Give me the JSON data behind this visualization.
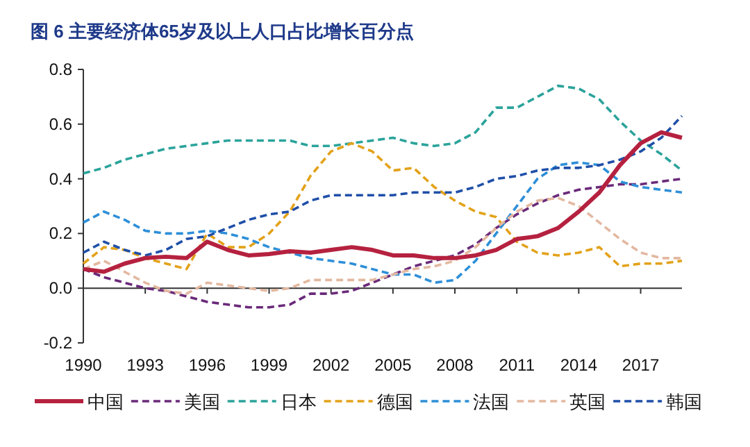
{
  "chart_data": {
    "type": "line",
    "title": "图 6  主要经济体65岁及以上人口占比增长百分点",
    "x": [
      1990,
      1991,
      1992,
      1993,
      1994,
      1995,
      1996,
      1997,
      1998,
      1999,
      2000,
      2001,
      2002,
      2003,
      2004,
      2005,
      2006,
      2007,
      2008,
      2009,
      2010,
      2011,
      2012,
      2013,
      2014,
      2015,
      2016,
      2017,
      2018,
      2019
    ],
    "xlim": [
      1990,
      2019
    ],
    "xticks": [
      1990,
      1993,
      1996,
      1999,
      2002,
      2005,
      2008,
      2011,
      2014,
      2017
    ],
    "ylim": [
      -0.2,
      0.8
    ],
    "yticks": [
      {
        "value": -0.2,
        "label": "-0.2"
      },
      {
        "value": 0,
        "label": "0.0"
      },
      {
        "value": 0.2,
        "label": "0.2"
      },
      {
        "value": 0.4,
        "label": "0.4"
      },
      {
        "value": 0.6,
        "label": "0.6"
      },
      {
        "value": 0.8,
        "label": "0.8"
      }
    ],
    "legend": "bottom",
    "series": [
      {
        "name": "中国",
        "color": "#b5213f",
        "line_style": "solid",
        "values": [
          0.07,
          0.06,
          0.09,
          0.11,
          0.115,
          0.11,
          0.17,
          0.14,
          0.12,
          0.125,
          0.135,
          0.13,
          0.14,
          0.15,
          0.14,
          0.12,
          0.12,
          0.11,
          0.11,
          0.12,
          0.14,
          0.18,
          0.19,
          0.22,
          0.28,
          0.35,
          0.45,
          0.53,
          0.57,
          0.55
        ]
      },
      {
        "name": "美国",
        "color": "#6a2a7a",
        "line_style": "dashed",
        "values": [
          0.07,
          0.04,
          0.02,
          0.0,
          -0.01,
          -0.03,
          -0.05,
          -0.06,
          -0.07,
          -0.07,
          -0.06,
          -0.02,
          -0.02,
          -0.01,
          0.02,
          0.05,
          0.08,
          0.1,
          0.12,
          0.16,
          0.22,
          0.27,
          0.31,
          0.34,
          0.36,
          0.37,
          0.38,
          0.38,
          0.39,
          0.4
        ]
      },
      {
        "name": "日本",
        "color": "#2ba39b",
        "line_style": "dashed",
        "values": [
          0.42,
          0.44,
          0.47,
          0.49,
          0.51,
          0.52,
          0.53,
          0.54,
          0.54,
          0.54,
          0.54,
          0.52,
          0.52,
          0.53,
          0.54,
          0.55,
          0.53,
          0.52,
          0.53,
          0.57,
          0.66,
          0.66,
          0.7,
          0.74,
          0.73,
          0.69,
          0.61,
          0.54,
          0.49,
          0.43
        ]
      },
      {
        "name": "德国",
        "color": "#e3a21a",
        "line_style": "dashed",
        "values": [
          0.09,
          0.15,
          0.14,
          0.11,
          0.09,
          0.07,
          0.2,
          0.15,
          0.15,
          0.2,
          0.28,
          0.41,
          0.5,
          0.53,
          0.5,
          0.43,
          0.44,
          0.37,
          0.32,
          0.28,
          0.26,
          0.17,
          0.13,
          0.12,
          0.13,
          0.15,
          0.08,
          0.09,
          0.09,
          0.1
        ]
      },
      {
        "name": "法国",
        "color": "#2e8fd8",
        "line_style": "dashed",
        "values": [
          0.24,
          0.28,
          0.25,
          0.21,
          0.2,
          0.2,
          0.21,
          0.2,
          0.18,
          0.15,
          0.13,
          0.11,
          0.1,
          0.09,
          0.07,
          0.05,
          0.05,
          0.02,
          0.03,
          0.1,
          0.2,
          0.3,
          0.4,
          0.45,
          0.46,
          0.45,
          0.39,
          0.37,
          0.36,
          0.35
        ]
      },
      {
        "name": "英国",
        "color": "#e3b8a0",
        "line_style": "dashed",
        "values": [
          0.07,
          0.1,
          0.06,
          0.02,
          -0.01,
          -0.02,
          0.02,
          0.01,
          0.0,
          -0.01,
          0.0,
          0.03,
          0.03,
          0.03,
          0.03,
          0.05,
          0.07,
          0.08,
          0.1,
          0.15,
          0.22,
          0.28,
          0.32,
          0.33,
          0.3,
          0.24,
          0.18,
          0.13,
          0.11,
          0.11
        ]
      },
      {
        "name": "韩国",
        "color": "#1f4fa8",
        "line_style": "dashed",
        "values": [
          0.13,
          0.17,
          0.14,
          0.12,
          0.14,
          0.18,
          0.19,
          0.22,
          0.25,
          0.27,
          0.28,
          0.32,
          0.34,
          0.34,
          0.34,
          0.34,
          0.35,
          0.35,
          0.35,
          0.37,
          0.4,
          0.41,
          0.43,
          0.44,
          0.44,
          0.45,
          0.47,
          0.5,
          0.55,
          0.63
        ]
      }
    ]
  }
}
